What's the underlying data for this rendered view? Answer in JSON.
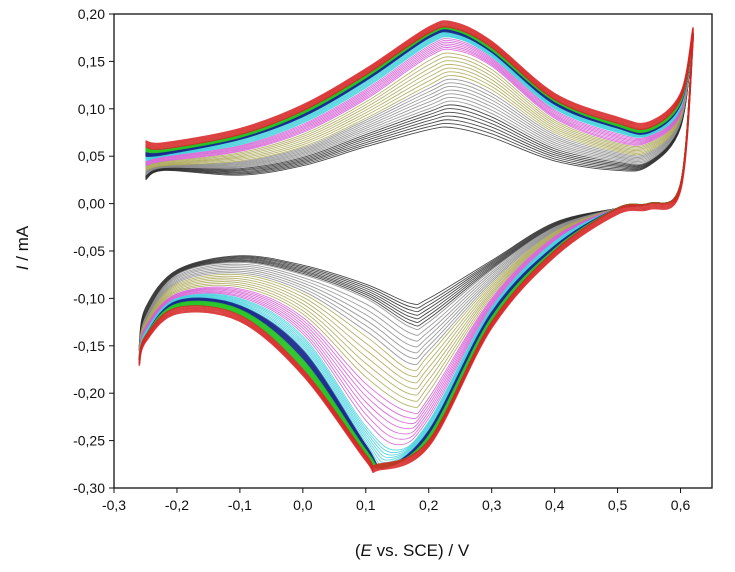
{
  "chart_data": {
    "type": "line",
    "title": "",
    "xlabel": {
      "prefix": "(",
      "symbol": "E",
      "rest": " vs. SCE) / V"
    },
    "ylabel": {
      "symbol": "I",
      "rest": " / mA"
    },
    "xlim": [
      -0.3,
      0.65
    ],
    "ylim": [
      -0.3,
      0.2
    ],
    "x_ticks": [
      -0.3,
      -0.2,
      -0.1,
      0.0,
      0.1,
      0.2,
      0.3,
      0.4,
      0.5,
      0.6
    ],
    "x_tick_labels": [
      "-0,3",
      "-0,2",
      "-0,1",
      "0,0",
      "0,1",
      "0,2",
      "0,3",
      "0,4",
      "0,5",
      "0,6"
    ],
    "y_ticks": [
      0.2,
      0.15,
      0.1,
      0.05,
      0.0,
      -0.05,
      -0.1,
      -0.15,
      -0.2,
      -0.25,
      -0.3
    ],
    "y_tick_labels": [
      "0,20",
      "0,15",
      "0,10",
      "0,05",
      "0,00",
      "-0,05",
      "-0,10",
      "-0,15",
      "-0,20",
      "-0,25",
      "-0,30"
    ],
    "grid": false,
    "legend": "none",
    "potential_window": [
      -0.26,
      0.62
    ],
    "series_colors": [
      "#2a2a2a",
      "#8a8a8a",
      "#a9a552",
      "#d45ad4",
      "#3ed0dc",
      "#1c2b8e",
      "#27c427",
      "#d62525"
    ],
    "series_groups": [
      {
        "color": "#2a2a2a",
        "anodic": {
          "x": [
            -0.25,
            -0.22,
            -0.1,
            0.0,
            0.1,
            0.2,
            0.24,
            0.3,
            0.4,
            0.5,
            0.55,
            0.6,
            0.62
          ],
          "y": [
            0.025,
            0.035,
            0.03,
            0.04,
            0.06,
            0.078,
            0.08,
            0.07,
            0.045,
            0.035,
            0.04,
            0.08,
            0.18
          ]
        },
        "cathodic": {
          "x": [
            0.62,
            0.6,
            0.55,
            0.5,
            0.4,
            0.3,
            0.2,
            0.17,
            0.1,
            0.0,
            -0.1,
            -0.2,
            -0.25,
            -0.26
          ],
          "y": [
            0.18,
            0.02,
            0.0,
            -0.005,
            -0.02,
            -0.06,
            -0.1,
            -0.105,
            -0.085,
            -0.065,
            -0.055,
            -0.07,
            -0.11,
            -0.15
          ]
        }
      },
      {
        "color": "#8a8a8a",
        "anodic": {
          "x": [
            -0.25,
            -0.22,
            -0.1,
            0.0,
            0.1,
            0.2,
            0.24,
            0.3,
            0.4,
            0.5,
            0.55,
            0.6,
            0.62
          ],
          "y": [
            0.03,
            0.038,
            0.038,
            0.05,
            0.075,
            0.1,
            0.108,
            0.095,
            0.06,
            0.045,
            0.045,
            0.085,
            0.18
          ]
        },
        "cathodic": {
          "x": [
            0.62,
            0.6,
            0.55,
            0.5,
            0.4,
            0.3,
            0.2,
            0.17,
            0.1,
            0.0,
            -0.1,
            -0.2,
            -0.25,
            -0.26
          ],
          "y": [
            0.18,
            0.02,
            0.0,
            -0.005,
            -0.025,
            -0.07,
            -0.125,
            -0.13,
            -0.1,
            -0.075,
            -0.062,
            -0.075,
            -0.12,
            -0.155
          ]
        }
      },
      {
        "color": "#a9a552",
        "anodic": {
          "x": [
            -0.25,
            -0.22,
            -0.1,
            0.0,
            0.1,
            0.2,
            0.24,
            0.3,
            0.4,
            0.5,
            0.55,
            0.6,
            0.62
          ],
          "y": [
            0.035,
            0.04,
            0.045,
            0.06,
            0.09,
            0.125,
            0.135,
            0.12,
            0.075,
            0.055,
            0.055,
            0.09,
            0.18
          ]
        },
        "cathodic": {
          "x": [
            0.62,
            0.6,
            0.55,
            0.5,
            0.4,
            0.3,
            0.2,
            0.17,
            0.1,
            0.0,
            -0.1,
            -0.2,
            -0.25,
            -0.26
          ],
          "y": [
            0.18,
            0.02,
            0.0,
            -0.005,
            -0.03,
            -0.085,
            -0.16,
            -0.175,
            -0.14,
            -0.095,
            -0.075,
            -0.085,
            -0.125,
            -0.155
          ]
        }
      },
      {
        "color": "#d45ad4",
        "anodic": {
          "x": [
            -0.25,
            -0.22,
            -0.1,
            0.0,
            0.1,
            0.2,
            0.24,
            0.3,
            0.4,
            0.5,
            0.55,
            0.6,
            0.62
          ],
          "y": [
            0.04,
            0.045,
            0.055,
            0.075,
            0.11,
            0.155,
            0.162,
            0.145,
            0.09,
            0.065,
            0.065,
            0.095,
            0.18
          ]
        },
        "cathodic": {
          "x": [
            0.62,
            0.6,
            0.55,
            0.5,
            0.4,
            0.3,
            0.2,
            0.17,
            0.1,
            0.0,
            -0.1,
            -0.2,
            -0.25,
            -0.26
          ],
          "y": [
            0.18,
            0.02,
            0.0,
            -0.005,
            -0.035,
            -0.1,
            -0.205,
            -0.22,
            -0.19,
            -0.12,
            -0.09,
            -0.095,
            -0.13,
            -0.16
          ]
        }
      },
      {
        "color": "#3ed0dc",
        "anodic": {
          "x": [
            -0.25,
            -0.22,
            -0.1,
            0.0,
            0.1,
            0.2,
            0.24,
            0.3,
            0.4,
            0.5,
            0.55,
            0.6,
            0.62
          ],
          "y": [
            0.045,
            0.05,
            0.062,
            0.085,
            0.122,
            0.168,
            0.175,
            0.155,
            0.1,
            0.075,
            0.072,
            0.1,
            0.18
          ]
        },
        "cathodic": {
          "x": [
            0.62,
            0.6,
            0.55,
            0.5,
            0.4,
            0.3,
            0.2,
            0.15,
            0.1,
            0.0,
            -0.1,
            -0.2,
            -0.25,
            -0.26
          ],
          "y": [
            0.18,
            0.02,
            0.0,
            -0.005,
            -0.04,
            -0.11,
            -0.23,
            -0.26,
            -0.235,
            -0.14,
            -0.1,
            -0.1,
            -0.135,
            -0.16
          ]
        }
      },
      {
        "color": "#1c2b8e",
        "anodic": {
          "x": [
            -0.25,
            -0.22,
            -0.1,
            0.0,
            0.1,
            0.2,
            0.24,
            0.3,
            0.4,
            0.5,
            0.55,
            0.6,
            0.62
          ],
          "y": [
            0.05,
            0.052,
            0.068,
            0.092,
            0.13,
            0.175,
            0.18,
            0.16,
            0.105,
            0.08,
            0.075,
            0.105,
            0.18
          ]
        },
        "cathodic": {
          "x": [
            0.62,
            0.6,
            0.55,
            0.5,
            0.4,
            0.3,
            0.2,
            0.13,
            0.1,
            0.0,
            -0.1,
            -0.2,
            -0.25,
            -0.26
          ],
          "y": [
            0.18,
            0.02,
            0.0,
            -0.005,
            -0.045,
            -0.115,
            -0.24,
            -0.278,
            -0.255,
            -0.155,
            -0.108,
            -0.103,
            -0.14,
            -0.165
          ]
        }
      },
      {
        "color": "#27c427",
        "anodic": {
          "x": [
            -0.25,
            -0.22,
            -0.1,
            0.0,
            0.1,
            0.2,
            0.24,
            0.3,
            0.4,
            0.5,
            0.55,
            0.6,
            0.62
          ],
          "y": [
            0.055,
            0.055,
            0.07,
            0.095,
            0.133,
            0.178,
            0.183,
            0.162,
            0.108,
            0.082,
            0.077,
            0.107,
            0.18
          ]
        },
        "cathodic": {
          "x": [
            0.62,
            0.6,
            0.55,
            0.5,
            0.4,
            0.3,
            0.2,
            0.13,
            0.1,
            0.0,
            -0.1,
            -0.2,
            -0.25,
            -0.26
          ],
          "y": [
            0.18,
            0.02,
            0.0,
            -0.005,
            -0.048,
            -0.12,
            -0.245,
            -0.278,
            -0.26,
            -0.165,
            -0.112,
            -0.106,
            -0.14,
            -0.165
          ]
        }
      },
      {
        "color": "#d62525",
        "anodic": {
          "x": [
            -0.25,
            -0.22,
            -0.1,
            0.0,
            0.1,
            0.2,
            0.24,
            0.3,
            0.4,
            0.5,
            0.55,
            0.6,
            0.62
          ],
          "y": [
            0.06,
            0.058,
            0.073,
            0.098,
            0.136,
            0.18,
            0.185,
            0.165,
            0.11,
            0.085,
            0.08,
            0.11,
            0.18
          ]
        },
        "cathodic": {
          "x": [
            0.62,
            0.6,
            0.55,
            0.5,
            0.4,
            0.3,
            0.2,
            0.12,
            0.1,
            0.0,
            -0.1,
            -0.2,
            -0.25,
            -0.26
          ],
          "y": [
            0.18,
            0.02,
            0.0,
            -0.005,
            -0.05,
            -0.125,
            -0.25,
            -0.275,
            -0.265,
            -0.175,
            -0.118,
            -0.11,
            -0.14,
            -0.165
          ]
        }
      }
    ]
  }
}
